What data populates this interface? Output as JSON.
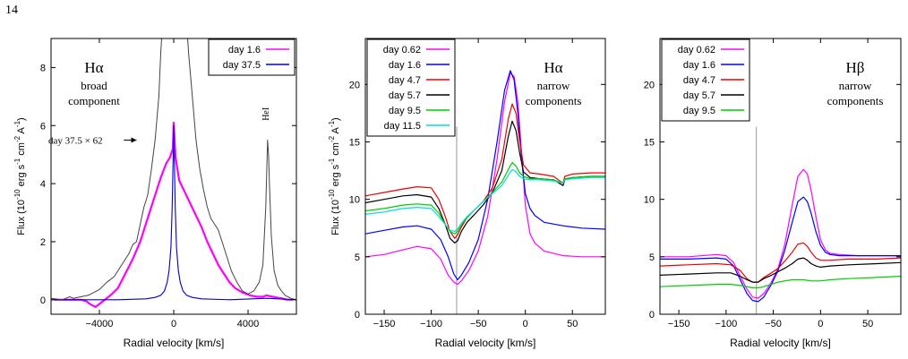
{
  "page": {
    "number": "14"
  },
  "chart_data": [
    {
      "type": "line",
      "title": "Hα",
      "subtitle": "broad component",
      "xlabel": "Radial velocity [km/s]",
      "ylabel": "Flux (10^-10 erg s^-1 cm^-2 A^-1)",
      "xlim": [
        -6600,
        6600
      ],
      "ylim": [
        -0.5,
        9
      ],
      "xticks": [
        -4000,
        0,
        4000
      ],
      "yticks": [
        0,
        2,
        4,
        6,
        8
      ],
      "legend": "top-right",
      "colors": {
        "frame": "#000000"
      },
      "annotations": [
        {
          "text": "day 37.5 × 62",
          "x": -4900,
          "y": 5.5,
          "arrow_to": [
            -2000,
            5.5
          ]
        },
        {
          "text": "HeI",
          "x": 5100,
          "y": 6.4,
          "rotated": true
        }
      ],
      "series": [
        {
          "name": "day 1.6",
          "color": "#ff00ff",
          "width": 2.2,
          "x": [
            -6400,
            -5600,
            -5000,
            -4700,
            -4500,
            -4200,
            -3800,
            -3400,
            -3000,
            -2600,
            -2200,
            -1800,
            -1400,
            -1000,
            -700,
            -400,
            -200,
            -50,
            0,
            100,
            300,
            600,
            900,
            1200,
            1500,
            1800,
            2100,
            2400,
            2700,
            3000,
            3300,
            3700,
            4100,
            4500,
            4800,
            5000,
            5200,
            5500,
            5800,
            6100,
            6400
          ],
          "y": [
            0,
            0,
            0,
            -0.05,
            -0.15,
            -0.25,
            -0.05,
            0.15,
            0.4,
            0.9,
            1.4,
            2.0,
            2.8,
            3.6,
            4.2,
            4.7,
            4.9,
            5.2,
            6.1,
            4.9,
            4.1,
            3.7,
            3.3,
            2.9,
            2.5,
            2.0,
            1.6,
            1.2,
            0.9,
            0.6,
            0.4,
            0.25,
            0.15,
            0.1,
            0.1,
            0.15,
            0.12,
            0.08,
            0.05,
            0,
            0
          ]
        },
        {
          "name": "day 37.5",
          "color": "#0000cc",
          "width": 1.1,
          "x": [
            -6600,
            -3000,
            -1500,
            -1000,
            -700,
            -500,
            -350,
            -250,
            -150,
            -80,
            -30,
            0,
            30,
            80,
            150,
            250,
            350,
            500,
            700,
            1000,
            1500,
            3000,
            5000,
            6600
          ],
          "y": [
            0,
            0,
            0.03,
            0.08,
            0.15,
            0.3,
            0.6,
            1.0,
            1.8,
            3.2,
            5.0,
            6.0,
            5.0,
            3.2,
            1.8,
            1.0,
            0.6,
            0.3,
            0.15,
            0.08,
            0.03,
            0,
            0.05,
            0
          ]
        },
        {
          "name": "day 37.5 × 62",
          "color": "#444444",
          "width": 1,
          "x": [
            -6600,
            -6000,
            -5600,
            -5400,
            -5000,
            -4600,
            -4300,
            -4000,
            -3600,
            -3200,
            -2800,
            -2400,
            -2200,
            -2000,
            -1800,
            -1600,
            -1400,
            -1200,
            -1000,
            -800,
            -700,
            -600,
            -500,
            -400,
            -300,
            0,
            300,
            400,
            500,
            600,
            700,
            800,
            1000,
            1200,
            1400,
            1600,
            1800,
            2000,
            2200,
            2400,
            2600,
            2800,
            3100,
            3400,
            3700,
            4000,
            4300,
            4600,
            4800,
            4950,
            5050,
            5100,
            5150,
            5250,
            5400,
            5600,
            5800,
            6000,
            6300,
            6600
          ],
          "y": [
            0.05,
            0,
            0.1,
            0.05,
            0.1,
            0.15,
            0.25,
            0.35,
            0.6,
            0.8,
            1.2,
            1.6,
            1.9,
            2.0,
            2.6,
            3.2,
            3.6,
            4.5,
            5.5,
            7.0,
            8.5,
            9.5,
            10,
            10,
            10,
            10,
            10,
            10,
            10,
            10,
            9.5,
            8.5,
            7.0,
            5.5,
            4.5,
            3.8,
            3.2,
            2.8,
            2.6,
            2.4,
            2.0,
            1.6,
            1.0,
            0.6,
            0.3,
            0.2,
            0.3,
            0.6,
            1.2,
            3.2,
            5.5,
            5.0,
            4.0,
            2.2,
            1.0,
            0.5,
            0.3,
            0.15,
            0.05,
            0
          ]
        }
      ]
    },
    {
      "type": "line",
      "title": "Hα",
      "subtitle": "narrow components",
      "xlabel": "Radial velocity [km/s]",
      "ylabel": "Flux (10^-10 erg s^-1 cm^-2 A^-1)",
      "xlim": [
        -170,
        85
      ],
      "ylim": [
        0,
        24
      ],
      "xticks": [
        -150,
        -100,
        -50,
        0,
        50
      ],
      "yticks": [
        0,
        5,
        10,
        15,
        20
      ],
      "legend": "top-left",
      "marker_line_x": -73,
      "series": [
        {
          "name": "day 0.62",
          "color": "#ff00ff",
          "x": [
            -170,
            -150,
            -130,
            -115,
            -100,
            -90,
            -82,
            -76,
            -72,
            -68,
            -60,
            -50,
            -40,
            -30,
            -22,
            -16,
            -12,
            -8,
            -4,
            0,
            5,
            10,
            20,
            40,
            60,
            85
          ],
          "y": [
            5.0,
            5.2,
            5.6,
            5.9,
            5.7,
            4.8,
            3.4,
            2.8,
            2.6,
            2.9,
            3.8,
            5.5,
            8.5,
            13.5,
            18.5,
            21.0,
            20.7,
            18.5,
            14.0,
            9.5,
            7.0,
            6.2,
            5.5,
            5.1,
            5.0,
            5.0
          ]
        },
        {
          "name": "day 1.6",
          "color": "#0000ff",
          "x": [
            -170,
            -150,
            -130,
            -115,
            -100,
            -90,
            -82,
            -76,
            -72,
            -68,
            -60,
            -50,
            -40,
            -30,
            -22,
            -16,
            -12,
            -8,
            -4,
            0,
            5,
            10,
            20,
            40,
            60,
            85
          ],
          "y": [
            7.0,
            7.3,
            7.6,
            7.7,
            7.4,
            6.5,
            5.0,
            3.5,
            3.0,
            3.4,
            4.5,
            6.5,
            10.0,
            15.0,
            19.5,
            21.2,
            20.4,
            17.5,
            13.5,
            10.5,
            9.2,
            8.6,
            8.0,
            7.7,
            7.5,
            7.4
          ]
        },
        {
          "name": "day 4.7",
          "color": "#ee0000",
          "x": [
            -170,
            -150,
            -130,
            -115,
            -100,
            -92,
            -85,
            -80,
            -75,
            -72,
            -68,
            -62,
            -55,
            -45,
            -35,
            -25,
            -18,
            -14,
            -10,
            -6,
            -2,
            5,
            15,
            30,
            40,
            42,
            50,
            70,
            85
          ],
          "y": [
            10.3,
            10.6,
            10.9,
            11.1,
            11.0,
            10.0,
            8.5,
            7.2,
            6.6,
            6.9,
            7.6,
            8.4,
            9.0,
            9.8,
            11.0,
            13.5,
            17.0,
            18.3,
            17.5,
            15.0,
            13.0,
            12.3,
            12.2,
            12.0,
            11.4,
            12.0,
            12.2,
            12.3,
            12.3
          ]
        },
        {
          "name": "day 5.7",
          "color": "#000000",
          "x": [
            -170,
            -150,
            -130,
            -115,
            -100,
            -92,
            -85,
            -80,
            -75,
            -72,
            -68,
            -62,
            -55,
            -45,
            -35,
            -25,
            -18,
            -14,
            -10,
            -6,
            -2,
            5,
            15,
            30,
            40,
            42,
            50,
            70,
            85
          ],
          "y": [
            9.7,
            10.0,
            10.3,
            10.4,
            10.2,
            9.2,
            7.8,
            6.6,
            6.2,
            6.4,
            7.2,
            8.0,
            8.6,
            9.5,
            10.6,
            12.5,
            15.5,
            16.8,
            16.0,
            14.0,
            12.4,
            11.9,
            11.8,
            11.7,
            11.2,
            11.7,
            11.9,
            12.0,
            12.0
          ]
        },
        {
          "name": "day 9.5",
          "color": "#00cc00",
          "x": [
            -170,
            -150,
            -130,
            -115,
            -100,
            -92,
            -85,
            -80,
            -75,
            -72,
            -68,
            -62,
            -55,
            -45,
            -35,
            -25,
            -18,
            -14,
            -10,
            -6,
            -2,
            5,
            15,
            30,
            40,
            42,
            50,
            70,
            85
          ],
          "y": [
            9.0,
            9.2,
            9.5,
            9.6,
            9.5,
            8.8,
            7.8,
            7.2,
            7.0,
            7.2,
            7.8,
            8.4,
            9.0,
            9.8,
            10.6,
            11.5,
            12.6,
            13.2,
            12.9,
            12.3,
            12.0,
            11.8,
            11.8,
            11.7,
            11.4,
            11.8,
            11.9,
            12.0,
            12.0
          ]
        },
        {
          "name": "day 11.5",
          "color": "#00dddd",
          "x": [
            -170,
            -150,
            -130,
            -115,
            -100,
            -92,
            -85,
            -80,
            -75,
            -72,
            -68,
            -62,
            -55,
            -45,
            -35,
            -25,
            -18,
            -14,
            -10,
            -6,
            -2,
            5,
            15,
            30,
            40,
            42,
            50,
            70,
            85
          ],
          "y": [
            8.7,
            8.9,
            9.2,
            9.3,
            9.2,
            8.5,
            7.8,
            7.3,
            7.2,
            7.4,
            7.9,
            8.5,
            9.0,
            9.8,
            10.5,
            11.2,
            12.1,
            12.6,
            12.4,
            12.0,
            11.8,
            11.7,
            11.7,
            11.6,
            11.4,
            11.7,
            11.8,
            11.9,
            11.9
          ]
        }
      ]
    },
    {
      "type": "line",
      "title": "Hβ",
      "subtitle": "narrow components",
      "xlabel": "Radial velocity [km/s]",
      "ylabel": "",
      "xlim": [
        -170,
        85
      ],
      "ylim": [
        0,
        24
      ],
      "xticks": [
        -150,
        -100,
        -50,
        0,
        50
      ],
      "yticks": [
        0,
        5,
        10,
        15,
        20
      ],
      "legend": "top-left",
      "marker_line_x": -68,
      "series": [
        {
          "name": "day 0.62",
          "color": "#ff00ff",
          "x": [
            -170,
            -140,
            -110,
            -100,
            -92,
            -85,
            -78,
            -72,
            -66,
            -60,
            -52,
            -45,
            -38,
            -30,
            -24,
            -18,
            -14,
            -10,
            -5,
            0,
            5,
            10,
            20,
            40,
            60,
            85
          ],
          "y": [
            5.0,
            5.0,
            5.2,
            5.1,
            4.5,
            3.3,
            2.2,
            1.5,
            1.4,
            1.8,
            2.8,
            4.0,
            6.0,
            9.5,
            12.0,
            12.6,
            12.2,
            10.8,
            8.5,
            6.5,
            5.6,
            5.3,
            5.2,
            5.1,
            5.1,
            5.1
          ]
        },
        {
          "name": "day 1.6",
          "color": "#0000ff",
          "x": [
            -170,
            -140,
            -110,
            -100,
            -92,
            -85,
            -78,
            -72,
            -66,
            -60,
            -52,
            -45,
            -38,
            -30,
            -24,
            -18,
            -14,
            -10,
            -5,
            0,
            5,
            10,
            20,
            40,
            60,
            85
          ],
          "y": [
            4.8,
            4.8,
            4.9,
            4.8,
            4.2,
            3.0,
            1.8,
            1.2,
            1.1,
            1.5,
            2.6,
            3.8,
            5.5,
            8.0,
            9.8,
            10.2,
            9.8,
            8.8,
            7.2,
            6.0,
            5.4,
            5.2,
            5.1,
            5.1,
            5.1,
            5.1
          ]
        },
        {
          "name": "day 4.7",
          "color": "#ee0000",
          "x": [
            -170,
            -140,
            -110,
            -95,
            -85,
            -78,
            -72,
            -66,
            -60,
            -52,
            -45,
            -38,
            -30,
            -24,
            -18,
            -14,
            -10,
            -5,
            0,
            10,
            30,
            60,
            85
          ],
          "y": [
            4.2,
            4.3,
            4.4,
            4.3,
            3.8,
            3.1,
            2.8,
            2.8,
            3.2,
            3.6,
            4.0,
            4.6,
            5.4,
            6.1,
            6.2,
            5.9,
            5.4,
            4.9,
            4.7,
            4.7,
            4.8,
            4.8,
            4.9
          ]
        },
        {
          "name": "day 5.7",
          "color": "#000000",
          "x": [
            -170,
            -140,
            -110,
            -95,
            -85,
            -78,
            -72,
            -66,
            -60,
            -52,
            -45,
            -38,
            -30,
            -24,
            -18,
            -14,
            -10,
            -5,
            0,
            10,
            30,
            60,
            85
          ],
          "y": [
            3.4,
            3.5,
            3.6,
            3.6,
            3.3,
            3.0,
            2.8,
            2.8,
            3.1,
            3.4,
            3.7,
            4.0,
            4.4,
            4.8,
            4.9,
            4.7,
            4.4,
            4.2,
            4.1,
            4.2,
            4.3,
            4.4,
            4.5
          ]
        },
        {
          "name": "day 9.5",
          "color": "#00cc00",
          "x": [
            -170,
            -140,
            -110,
            -95,
            -85,
            -78,
            -72,
            -66,
            -60,
            -52,
            -45,
            -38,
            -30,
            -24,
            -18,
            -14,
            -10,
            -5,
            0,
            10,
            30,
            60,
            85
          ],
          "y": [
            2.4,
            2.5,
            2.6,
            2.6,
            2.5,
            2.4,
            2.3,
            2.3,
            2.4,
            2.6,
            2.8,
            2.9,
            3.0,
            3.0,
            3.0,
            2.95,
            2.9,
            2.9,
            2.9,
            3.0,
            3.1,
            3.2,
            3.3
          ]
        }
      ]
    }
  ]
}
